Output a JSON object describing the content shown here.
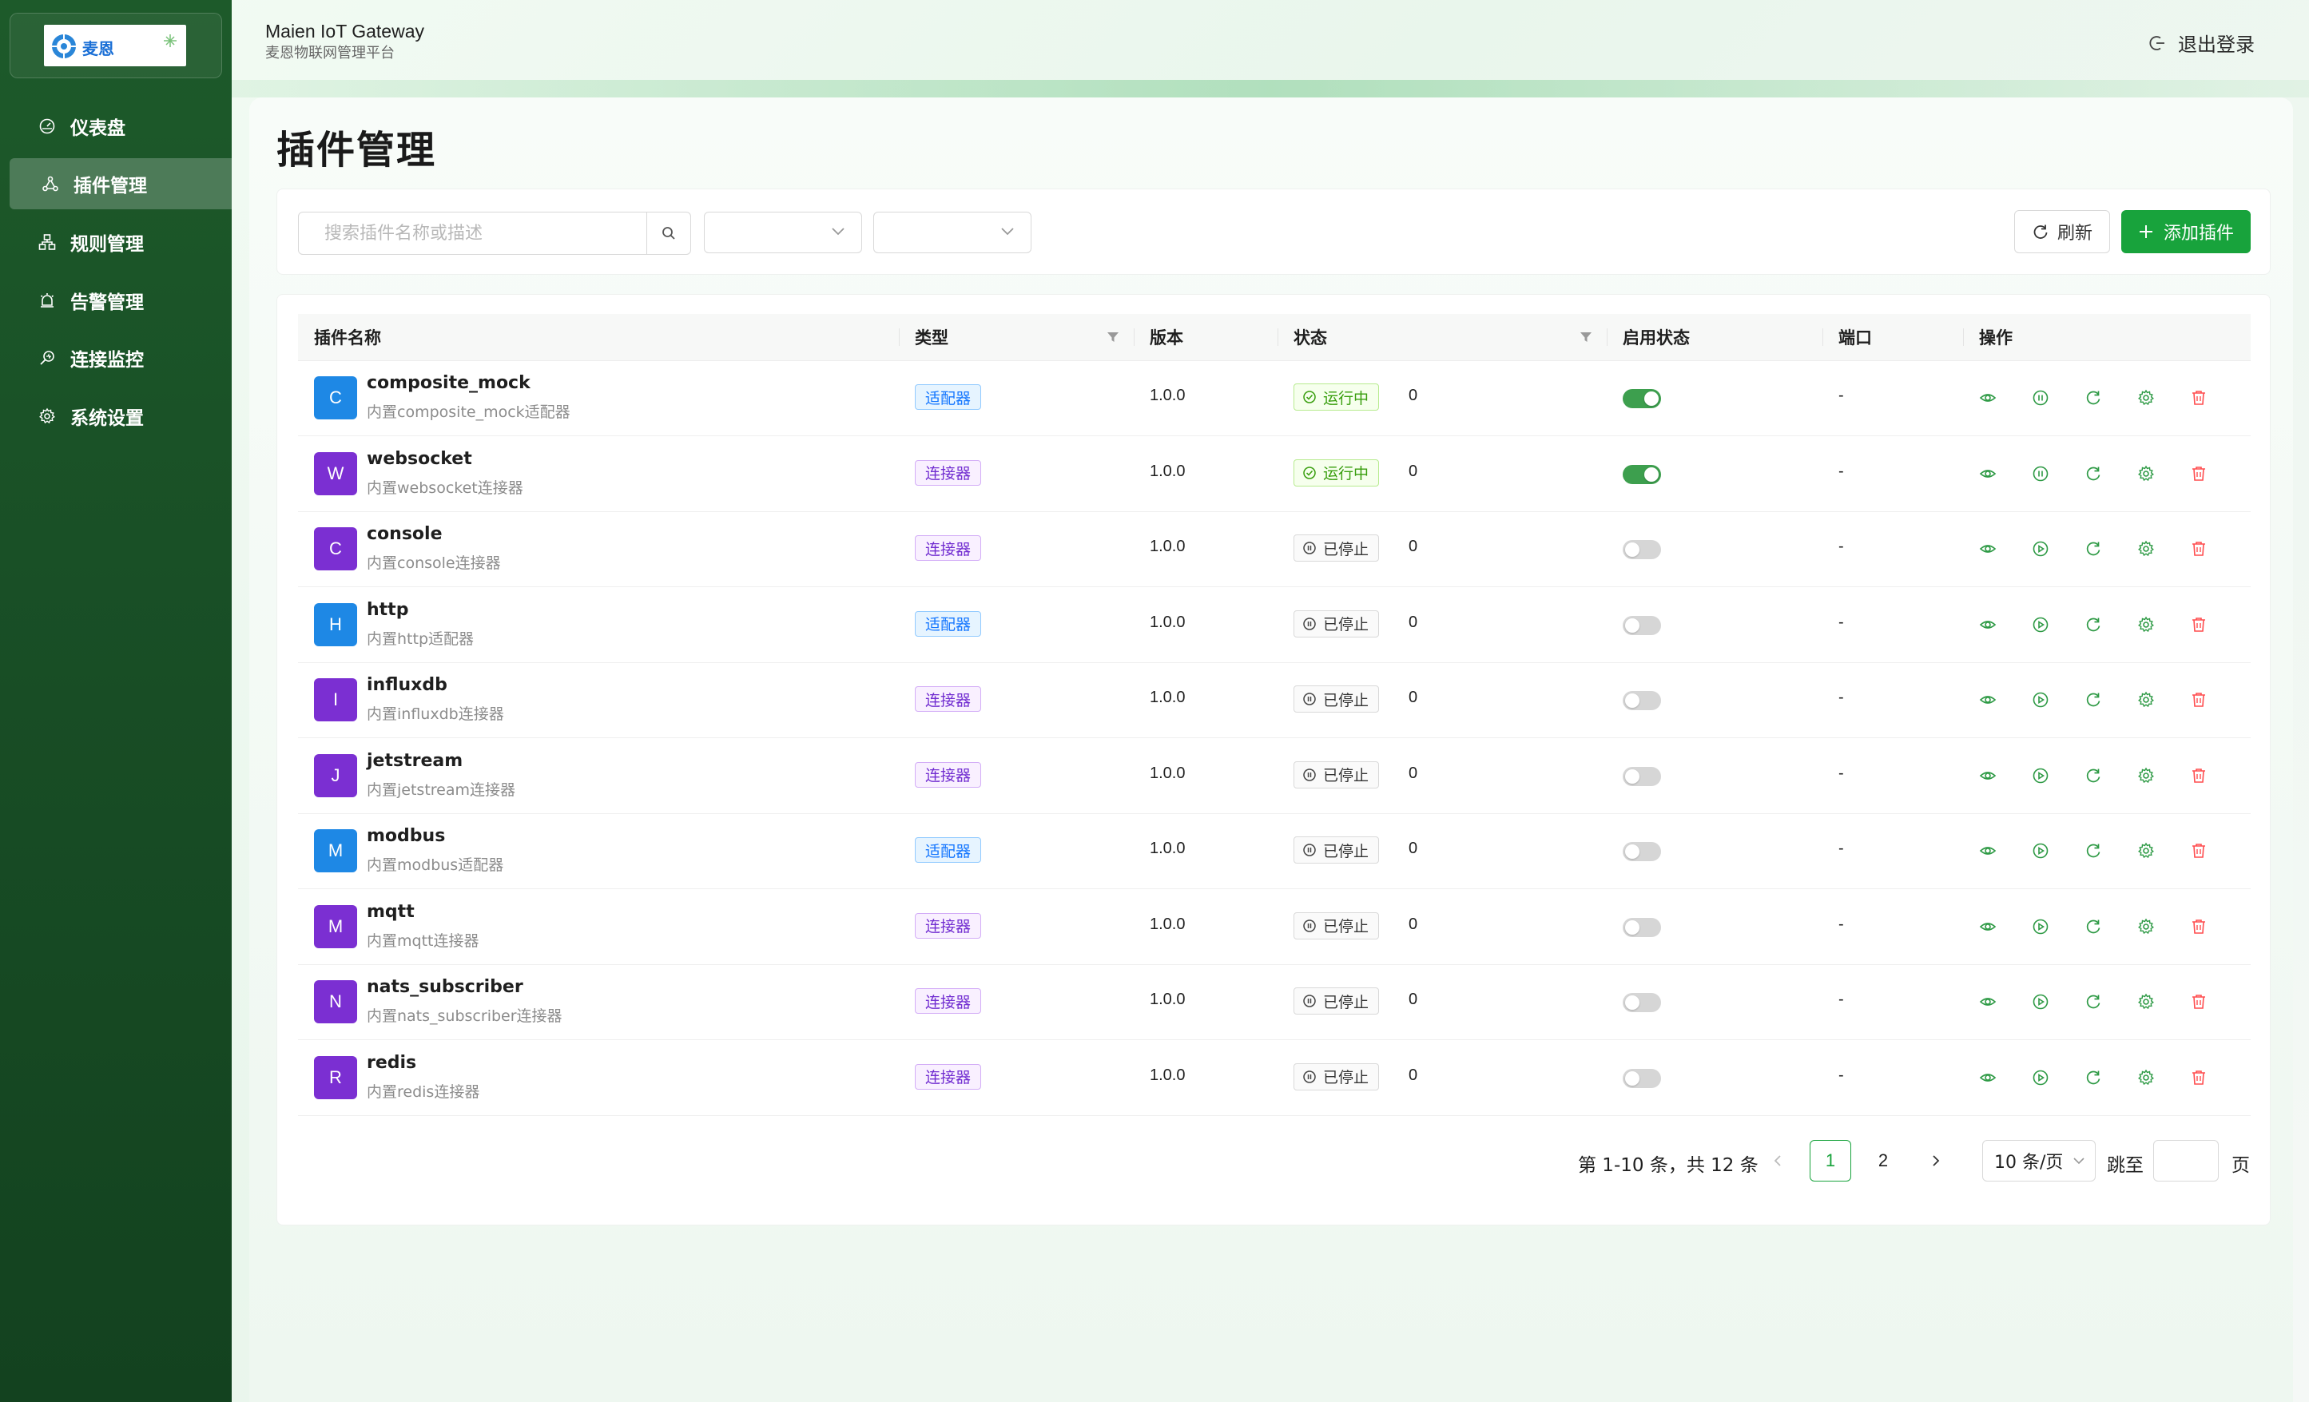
{
  "app": {
    "title": "Maien IoT Gateway",
    "subtitle": "麦恩物联网管理平台",
    "logo_text": "麦恩"
  },
  "header": {
    "logout_label": "退出登录"
  },
  "sidebar": {
    "items": [
      {
        "label": "仪表盘",
        "icon": "dashboard-icon",
        "active": false
      },
      {
        "label": "插件管理",
        "icon": "plugin-icon",
        "active": true
      },
      {
        "label": "规则管理",
        "icon": "rules-icon",
        "active": false
      },
      {
        "label": "告警管理",
        "icon": "alarm-icon",
        "active": false
      },
      {
        "label": "连接监控",
        "icon": "monitor-icon",
        "active": false
      },
      {
        "label": "系统设置",
        "icon": "gear-icon",
        "active": false
      }
    ]
  },
  "page": {
    "title": "插件管理"
  },
  "toolbar": {
    "search_placeholder": "搜索插件名称或描述",
    "type_filter_value": "",
    "status_filter_value": "",
    "refresh_label": "刷新",
    "add_label": "添加插件"
  },
  "table": {
    "columns": {
      "name": "插件名称",
      "type": "类型",
      "version": "版本",
      "status": "状态",
      "enabled": "启用状态",
      "port": "端口",
      "actions": "操作"
    },
    "rows": [
      {
        "initial": "C",
        "avatar_color": "#1e88e5",
        "name": "composite_mock",
        "desc": "内置composite_mock适配器",
        "type": "适配器",
        "type_kind": "adapter",
        "version": "1.0.0",
        "status": "运行中",
        "status_kind": "running",
        "count": "0",
        "enabled": true,
        "port": "-"
      },
      {
        "initial": "W",
        "avatar_color": "#7b2fd2",
        "name": "websocket",
        "desc": "内置websocket连接器",
        "type": "连接器",
        "type_kind": "connector",
        "version": "1.0.0",
        "status": "运行中",
        "status_kind": "running",
        "count": "0",
        "enabled": true,
        "port": "-"
      },
      {
        "initial": "C",
        "avatar_color": "#7b2fd2",
        "name": "console",
        "desc": "内置console连接器",
        "type": "连接器",
        "type_kind": "connector",
        "version": "1.0.0",
        "status": "已停止",
        "status_kind": "stopped",
        "count": "0",
        "enabled": false,
        "port": "-"
      },
      {
        "initial": "H",
        "avatar_color": "#1e88e5",
        "name": "http",
        "desc": "内置http适配器",
        "type": "适配器",
        "type_kind": "adapter",
        "version": "1.0.0",
        "status": "已停止",
        "status_kind": "stopped",
        "count": "0",
        "enabled": false,
        "port": "-"
      },
      {
        "initial": "I",
        "avatar_color": "#7b2fd2",
        "name": "influxdb",
        "desc": "内置influxdb连接器",
        "type": "连接器",
        "type_kind": "connector",
        "version": "1.0.0",
        "status": "已停止",
        "status_kind": "stopped",
        "count": "0",
        "enabled": false,
        "port": "-"
      },
      {
        "initial": "J",
        "avatar_color": "#7b2fd2",
        "name": "jetstream",
        "desc": "内置jetstream连接器",
        "type": "连接器",
        "type_kind": "connector",
        "version": "1.0.0",
        "status": "已停止",
        "status_kind": "stopped",
        "count": "0",
        "enabled": false,
        "port": "-"
      },
      {
        "initial": "M",
        "avatar_color": "#1e88e5",
        "name": "modbus",
        "desc": "内置modbus适配器",
        "type": "适配器",
        "type_kind": "adapter",
        "version": "1.0.0",
        "status": "已停止",
        "status_kind": "stopped",
        "count": "0",
        "enabled": false,
        "port": "-"
      },
      {
        "initial": "M",
        "avatar_color": "#7b2fd2",
        "name": "mqtt",
        "desc": "内置mqtt连接器",
        "type": "连接器",
        "type_kind": "connector",
        "version": "1.0.0",
        "status": "已停止",
        "status_kind": "stopped",
        "count": "0",
        "enabled": false,
        "port": "-"
      },
      {
        "initial": "N",
        "avatar_color": "#7b2fd2",
        "name": "nats_subscriber",
        "desc": "内置nats_subscriber连接器",
        "type": "连接器",
        "type_kind": "connector",
        "version": "1.0.0",
        "status": "已停止",
        "status_kind": "stopped",
        "count": "0",
        "enabled": false,
        "port": "-"
      },
      {
        "initial": "R",
        "avatar_color": "#7b2fd2",
        "name": "redis",
        "desc": "内置redis连接器",
        "type": "连接器",
        "type_kind": "connector",
        "version": "1.0.0",
        "status": "已停止",
        "status_kind": "stopped",
        "count": "0",
        "enabled": false,
        "port": "-"
      }
    ],
    "row_actions": [
      "view-icon",
      "start-pause-icon",
      "restart-icon",
      "settings-icon",
      "delete-icon"
    ]
  },
  "pagination": {
    "summary": "第 1-10 条，共 12 条",
    "pages": [
      "1",
      "2"
    ],
    "current": "1",
    "page_size": "10 条/页",
    "jump_label": "跳至",
    "page_label": "页"
  },
  "colors": {
    "primary": "#18a33c",
    "sidebar": "#1a5228",
    "adapter": "#1677ff",
    "connector": "#722ed1",
    "danger": "#ff4d4f"
  }
}
